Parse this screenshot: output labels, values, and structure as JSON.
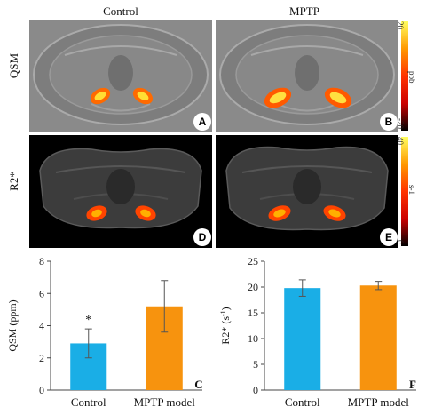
{
  "figure": {
    "col_labels": [
      "Control",
      "MPTP"
    ],
    "row_labels": [
      "QSM",
      "R2*"
    ],
    "panel_letters": [
      "A",
      "B",
      "D",
      "E"
    ],
    "qsm_colorbar": {
      "max": "20",
      "min": "-20",
      "unit": "ppb"
    },
    "r2_colorbar": {
      "max": "40",
      "min": "0",
      "unit": "s-1"
    }
  },
  "chart_data": [
    {
      "type": "bar",
      "panel": "C",
      "categories": [
        "Control",
        "MPTP model"
      ],
      "values": [
        2.9,
        5.2
      ],
      "errors": [
        0.9,
        1.6
      ],
      "colors": [
        "#1aaee6",
        "#f7930e"
      ],
      "ylabel": "QSM (ppm)",
      "ylim": [
        0,
        8
      ],
      "yticks": [
        0,
        2,
        4,
        6,
        8
      ],
      "annotation": "*"
    },
    {
      "type": "bar",
      "panel": "F",
      "categories": [
        "Control",
        "MPTP model"
      ],
      "values": [
        19.8,
        20.3
      ],
      "errors": [
        1.6,
        0.8
      ],
      "colors": [
        "#1aaee6",
        "#f7930e"
      ],
      "ylabel": "R2* (s-1)",
      "ylim": [
        0,
        25
      ],
      "yticks": [
        0,
        5,
        10,
        15,
        20,
        25
      ]
    }
  ]
}
